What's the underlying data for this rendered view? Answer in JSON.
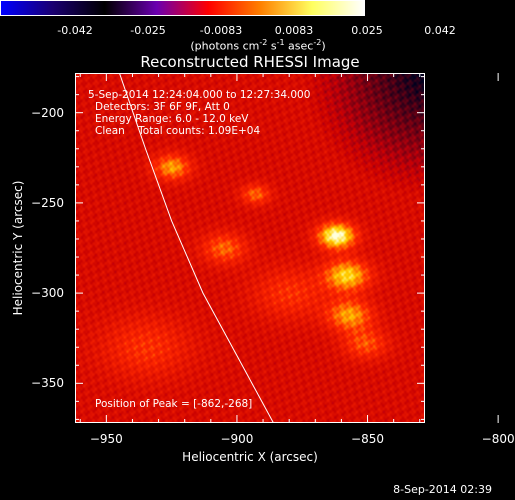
{
  "chart_data": {
    "type": "heatmap",
    "title": "Reconstructed RHESSI Image",
    "xlabel": "Heliocentric X (arcsec)",
    "ylabel": "Heliocentric Y (arcsec)",
    "xlim": [
      -962,
      -828
    ],
    "ylim": [
      -372,
      -178
    ],
    "xticks": [
      -950,
      -900,
      -850,
      -800
    ],
    "yticks": [
      -200,
      -250,
      -300,
      -350
    ],
    "colorbar": {
      "ticks": [
        "-0.042",
        "-0.025",
        "-0.0083",
        "0.0083",
        "0.025",
        "0.042"
      ],
      "range": [
        -0.042,
        0.042
      ],
      "units_text": "(photons cm",
      "units_sup1": "-2",
      "units_mid1": " s",
      "units_sup2": "-1",
      "units_mid2": " asec",
      "units_sup3": "-2",
      "units_end": ")",
      "colors": [
        "#0000ff",
        "#1a0070",
        "#000000",
        "#6a00b0",
        "#ff0000",
        "#ff8000",
        "#ffff60",
        "#ffffff"
      ]
    },
    "annotations": {
      "time_range": "5-Sep-2014 12:24:04.000 to 12:27:34.000",
      "detectors": "Detectors: 3F 6F 9F, Att 0",
      "energy": "Energy Range: 6.0 - 12.0 keV",
      "method": "Clean    Total counts: 1.09E+04",
      "peak": "Position of Peak = [-862,-268]"
    },
    "peak": {
      "x": -862,
      "y": -268
    },
    "sources": [
      {
        "x": -862,
        "y": -268,
        "sigma": 5,
        "amp": 1.0
      },
      {
        "x": -858,
        "y": -290,
        "sigma": 6,
        "amp": 0.75
      },
      {
        "x": -857,
        "y": -312,
        "sigma": 6,
        "amp": 0.6
      },
      {
        "x": -851,
        "y": -328,
        "sigma": 6,
        "amp": 0.4
      },
      {
        "x": -925,
        "y": -230,
        "sigma": 5,
        "amp": 0.6
      },
      {
        "x": -893,
        "y": -245,
        "sigma": 4,
        "amp": 0.45
      },
      {
        "x": -905,
        "y": -275,
        "sigma": 6,
        "amp": 0.45
      },
      {
        "x": -880,
        "y": -300,
        "sigma": 10,
        "amp": 0.3
      },
      {
        "x": -935,
        "y": -330,
        "sigma": 12,
        "amp": 0.3
      }
    ],
    "background_level": 0.42,
    "limb_curve": [
      [
        -945,
        -178
      ],
      [
        -935,
        -220
      ],
      [
        -925,
        -260
      ],
      [
        -913,
        -300
      ],
      [
        -898,
        -340
      ],
      [
        -886,
        -372
      ]
    ]
  },
  "timestamp": "8-Sep-2014 02:39"
}
